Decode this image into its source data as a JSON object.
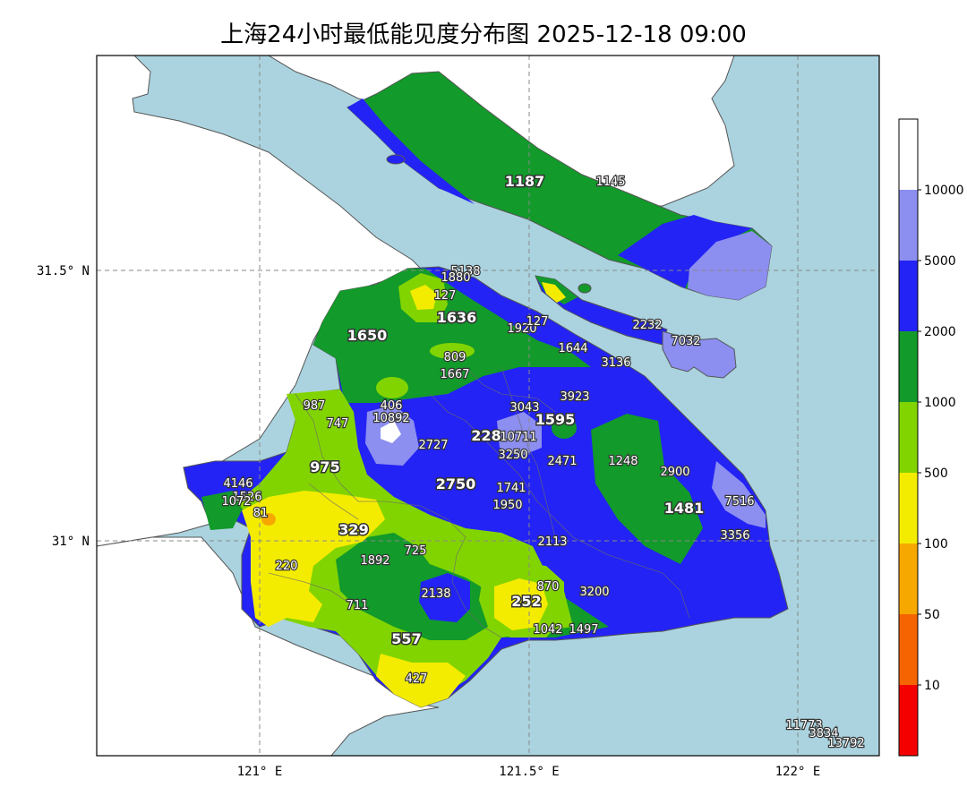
{
  "title": "上海24小时最低能见度分布图 2025-12-18 09:00",
  "axes": {
    "x_ticks": [
      "121° E",
      "121.5° E",
      "122° E"
    ],
    "y_ticks": [
      "31.5° N",
      "31° N"
    ]
  },
  "colorbar": {
    "labels": [
      "10000",
      "5000",
      "2000",
      "1000",
      "500",
      "100",
      "50",
      "10"
    ],
    "colors": [
      "#ffffff",
      "#8c8ef0",
      "#2323f5",
      "#129a2a",
      "#82d400",
      "#f4ec00",
      "#f7a800",
      "#f56400",
      "#f50000"
    ]
  },
  "stations": [
    {
      "label": "1187",
      "big": true
    },
    {
      "label": "1145",
      "big": false
    },
    {
      "label": "5138",
      "big": false
    },
    {
      "label": "1880",
      "big": false
    },
    {
      "label": "127",
      "big": false
    },
    {
      "label": "1636",
      "big": true
    },
    {
      "label": "1920",
      "big": false
    },
    {
      "label": "127",
      "big": false
    },
    {
      "label": "2232",
      "big": false
    },
    {
      "label": "7032",
      "big": false
    },
    {
      "label": "1650",
      "big": true
    },
    {
      "label": "809",
      "big": false
    },
    {
      "label": "1644",
      "big": false
    },
    {
      "label": "3136",
      "big": false
    },
    {
      "label": "1667",
      "big": false
    },
    {
      "label": "987",
      "big": false
    },
    {
      "label": "406",
      "big": false
    },
    {
      "label": "10892",
      "big": false
    },
    {
      "label": "747",
      "big": false
    },
    {
      "label": "3043",
      "big": false
    },
    {
      "label": "3923",
      "big": false
    },
    {
      "label": "1595",
      "big": true
    },
    {
      "label": "228",
      "big": true
    },
    {
      "label": "10711",
      "big": false
    },
    {
      "label": "2727",
      "big": false
    },
    {
      "label": "3250",
      "big": false
    },
    {
      "label": "2471",
      "big": false
    },
    {
      "label": "1248",
      "big": false
    },
    {
      "label": "2900",
      "big": false
    },
    {
      "label": "975",
      "big": true
    },
    {
      "label": "4146",
      "big": false
    },
    {
      "label": "1526",
      "big": false
    },
    {
      "label": "1072",
      "big": false
    },
    {
      "label": "2750",
      "big": true
    },
    {
      "label": "1741",
      "big": false
    },
    {
      "label": "1950",
      "big": false
    },
    {
      "label": "7516",
      "big": false
    },
    {
      "label": "1481",
      "big": true
    },
    {
      "label": "81",
      "big": false
    },
    {
      "label": "329",
      "big": true
    },
    {
      "label": "3356",
      "big": false
    },
    {
      "label": "2113",
      "big": false
    },
    {
      "label": "725",
      "big": false
    },
    {
      "label": "1892",
      "big": false
    },
    {
      "label": "220",
      "big": false
    },
    {
      "label": "870",
      "big": false
    },
    {
      "label": "3200",
      "big": false
    },
    {
      "label": "2138",
      "big": false
    },
    {
      "label": "252",
      "big": true
    },
    {
      "label": "711",
      "big": false
    },
    {
      "label": "557",
      "big": true
    },
    {
      "label": "1042",
      "big": false
    },
    {
      "label": "1497",
      "big": false
    },
    {
      "label": "427",
      "big": false
    },
    {
      "label": "11773",
      "big": false
    },
    {
      "label": "3834",
      "big": false
    },
    {
      "label": "13792",
      "big": false
    }
  ]
}
